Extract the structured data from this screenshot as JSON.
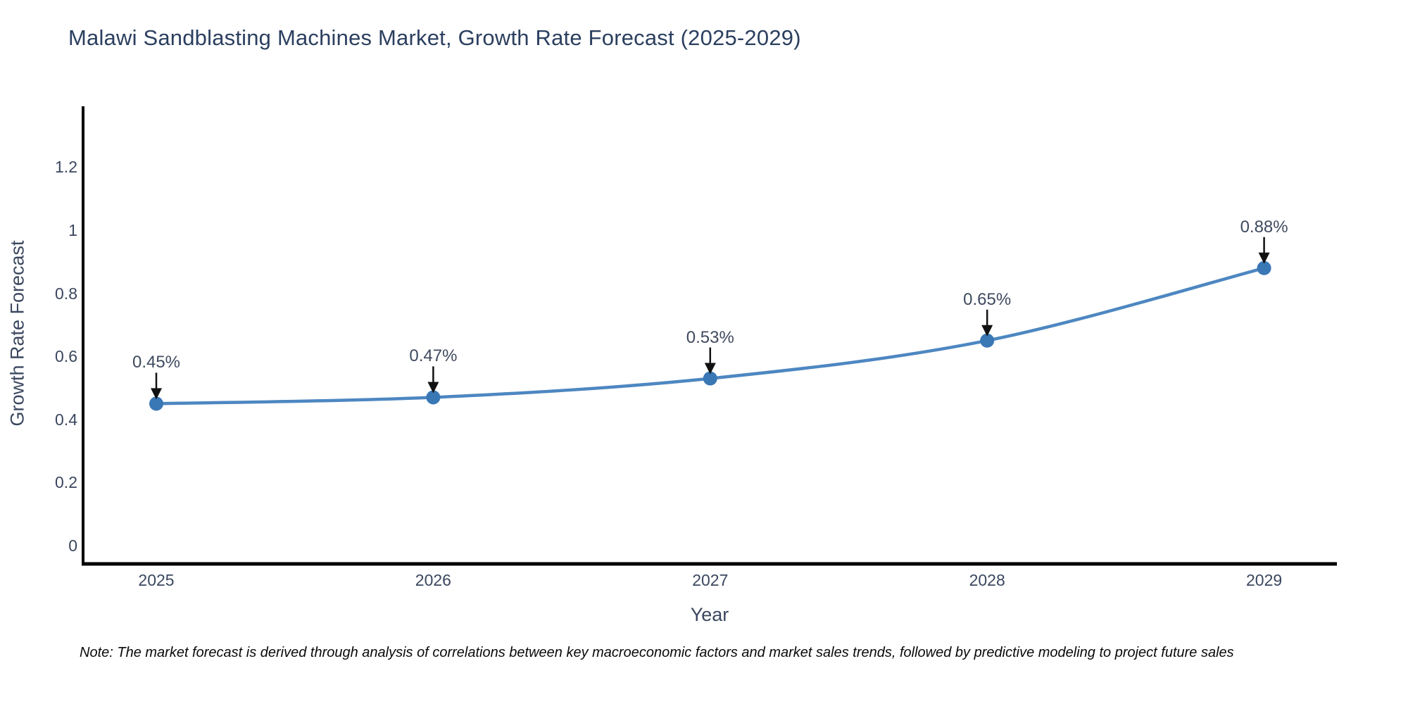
{
  "title": "Malawi Sandblasting Machines Market, Growth Rate Forecast (2025-2029)",
  "note": "Note: The market forecast is derived through analysis of correlations between key macroeconomic factors and market sales trends, followed by predictive modeling to project future sales",
  "chart_data": {
    "type": "line",
    "title": "Malawi Sandblasting Machines Market, Growth Rate Forecast (2025-2029)",
    "categories": [
      "2025",
      "2026",
      "2027",
      "2028",
      "2029"
    ],
    "series": [
      {
        "name": "Growth Rate Forecast",
        "values": [
          0.45,
          0.47,
          0.53,
          0.65,
          0.88
        ]
      }
    ],
    "annotations": [
      "0.45%",
      "0.47%",
      "0.53%",
      "0.65%",
      "0.88%"
    ],
    "xlabel": "Year",
    "ylabel": "Growth Rate Forecast",
    "yticks": [
      0,
      0.2,
      0.4,
      0.6,
      0.8,
      1,
      1.2
    ],
    "ytick_labels": [
      "0",
      "0.2",
      "0.4",
      "0.6",
      "0.8",
      "1",
      "1.2"
    ],
    "ylim": [
      -0.054,
      1.39
    ],
    "grid": false,
    "legend_position": "none",
    "colors": {
      "line": "#4d87c1",
      "marker": "#3a77b5",
      "arrow": "#111111",
      "axis": "#000000",
      "title_text": "#2b3f5f",
      "tick_text": "#3b475f"
    }
  }
}
